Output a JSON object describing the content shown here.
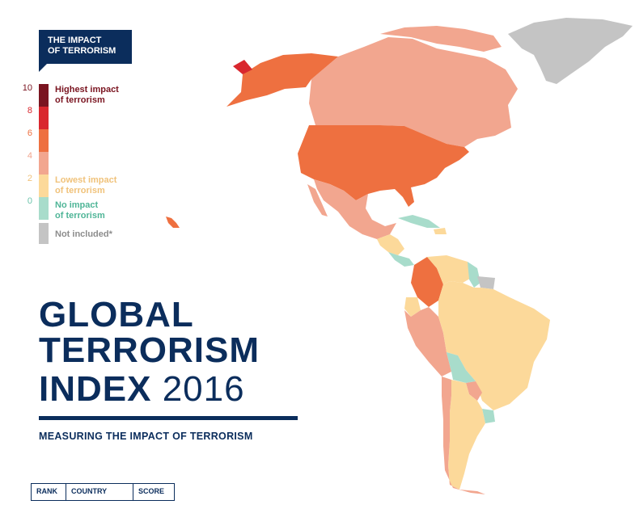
{
  "legend": {
    "title_line1": "THE IMPACT",
    "title_line2": "OF TERRORISM",
    "ticks": [
      "10",
      "8",
      "6",
      "4",
      "2",
      "0"
    ],
    "highest_line1": "Highest impact",
    "highest_line2": "of terrorism",
    "lowest_line1": "Lowest impact",
    "lowest_line2": "of terrorism",
    "none_line1": "No impact",
    "none_line2": "of terrorism",
    "not_included": "Not included*"
  },
  "title": {
    "line1": "GLOBAL",
    "line2": "TERRORISM",
    "line3_word": "INDEX",
    "line3_year": " 2016",
    "subtitle": "MEASURING THE IMPACT OF TERRORISM"
  },
  "table": {
    "headers": [
      "RANK",
      "COUNTRY",
      "SCORE"
    ]
  },
  "colors": {
    "navy": "#0b2d5c",
    "very_high": "#7a1420",
    "high": "#d9272e",
    "medium_high": "#ee7040",
    "medium": "#f2a68f",
    "low": "#fcd99a",
    "none": "#a8dccb",
    "not_included": "#c4c4c4"
  }
}
